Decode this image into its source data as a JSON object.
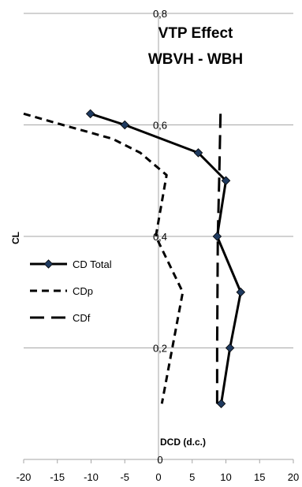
{
  "chart_data": {
    "type": "line",
    "title": [
      "VTP Effect",
      "WBVH - WBH"
    ],
    "xlabel": "DCD (d.c.)",
    "ylabel": "CL",
    "xlim": [
      -20,
      20
    ],
    "ylim": [
      0,
      0.8
    ],
    "xticks": [
      -20,
      -15,
      -10,
      -5,
      0,
      5,
      10,
      15,
      20
    ],
    "yticks": [
      0,
      0.2,
      0.4,
      0.6,
      0.8
    ],
    "ytick_labels": [
      "0",
      "0,2",
      "0,4",
      "0,6",
      "0,8"
    ],
    "grid": "horizontal",
    "legend_position": "left",
    "series": [
      {
        "name": "CD Total",
        "style": "solid-diamond",
        "x": [
          -10.1,
          -5,
          5.9,
          10,
          8.7,
          12.2,
          10.6,
          9.3
        ],
        "y": [
          0.62,
          0.6,
          0.55,
          0.5,
          0.4,
          0.3,
          0.2,
          0.1
        ]
      },
      {
        "name": "CDp",
        "style": "short-dash",
        "x": [
          -20,
          -14.2,
          -6.8,
          -2.7,
          1.2,
          -0.4,
          3.6,
          0.5
        ],
        "y": [
          0.62,
          0.6,
          0.575,
          0.55,
          0.51,
          0.4,
          0.3,
          0.1
        ]
      },
      {
        "name": "CDf",
        "style": "long-dash",
        "x": [
          9.2,
          9.0,
          8.8,
          8.7,
          8.7
        ],
        "y": [
          0.62,
          0.5,
          0.4,
          0.2,
          0.1
        ]
      }
    ],
    "colors": {
      "line": "#000000",
      "marker_fill": "#1F3A5F",
      "grid": "#A6A6A6"
    }
  }
}
